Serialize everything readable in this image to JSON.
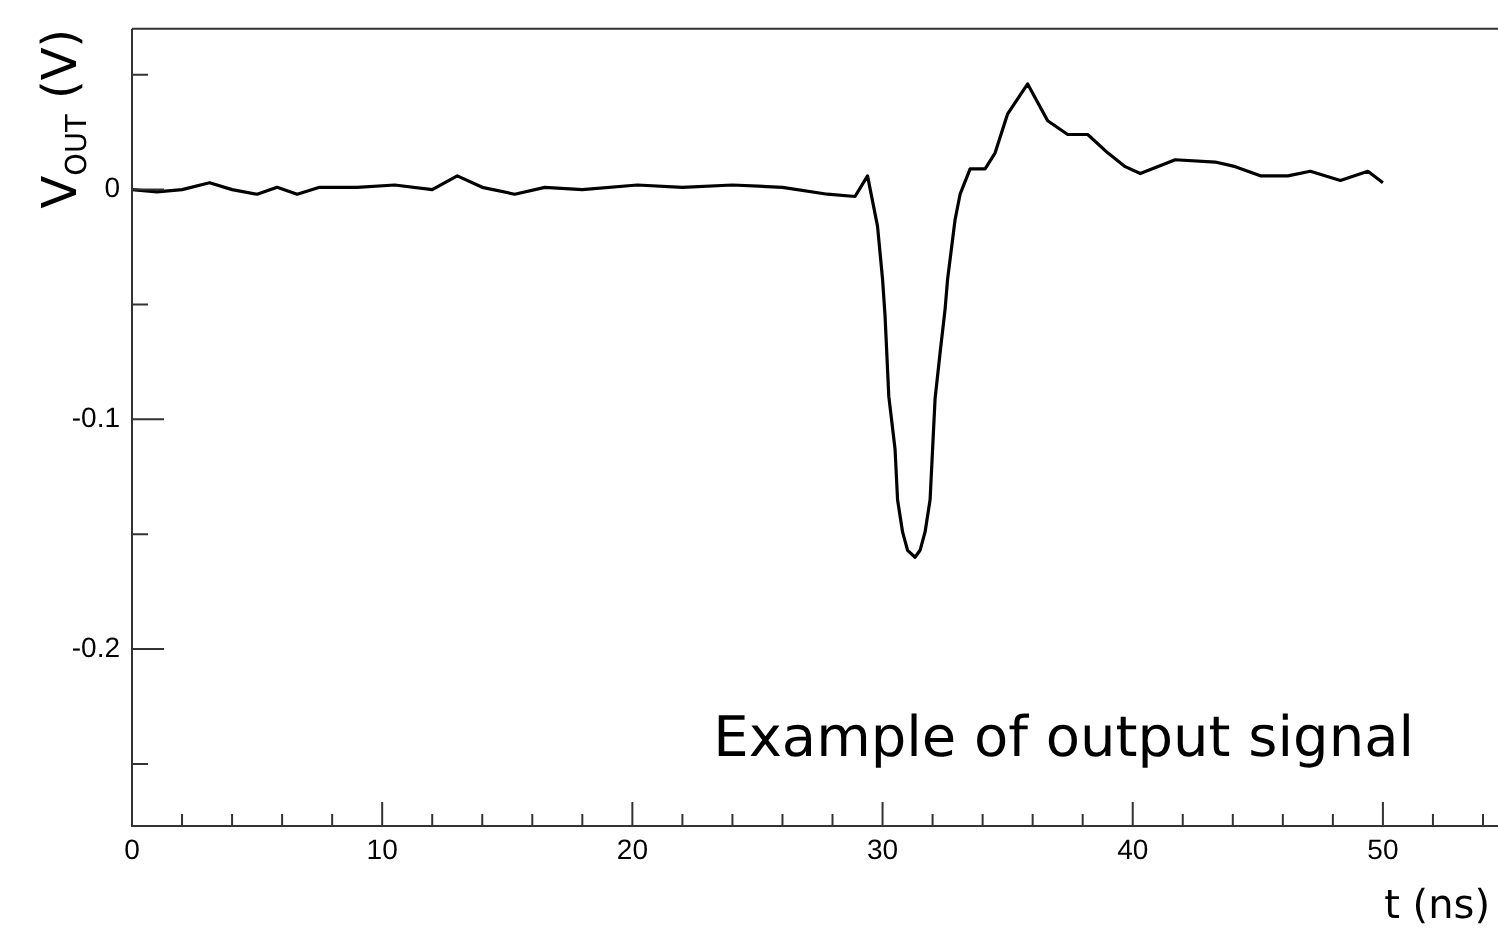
{
  "chart_data": {
    "type": "line",
    "xlabel": "t (ns)",
    "ylabel": "V$_{OUT}$ (V)",
    "annotations": [
      "Example of output signal"
    ],
    "x": [
      0,
      1,
      2,
      3.1,
      4,
      5,
      5.8,
      6.6,
      7.5,
      9,
      10.5,
      12,
      13,
      14,
      15.3,
      16.5,
      18,
      20.2,
      22,
      24,
      26,
      27.8,
      28.9,
      29.4,
      29.8,
      30.0,
      30.1,
      30.25,
      30.5,
      30.6,
      30.8,
      31.0,
      31.3,
      31.5,
      31.7,
      31.9,
      32.0,
      32.1,
      32.3,
      32.5,
      32.6,
      32.9,
      33.1,
      33.5,
      34.1,
      34.5,
      35.0,
      35.8,
      36.6,
      37.4,
      38.2,
      39.0,
      39.7,
      40.3,
      41.7,
      43.3,
      44.1,
      45.1,
      46.2,
      47.1,
      48.3,
      49.4,
      50
    ],
    "values": [
      0,
      -0.001,
      0,
      0.003,
      0,
      -0.002,
      0.001,
      -0.002,
      0.001,
      0.001,
      0.002,
      0,
      0.006,
      0.001,
      -0.002,
      0.001,
      0,
      0.002,
      0.001,
      0.002,
      0.001,
      -0.002,
      -0.003,
      0.006,
      -0.016,
      -0.039,
      -0.055,
      -0.09,
      -0.113,
      -0.135,
      -0.149,
      -0.157,
      -0.16,
      -0.157,
      -0.149,
      -0.135,
      -0.113,
      -0.091,
      -0.071,
      -0.052,
      -0.039,
      -0.013,
      -0.002,
      0.009,
      0.009,
      0.016,
      0.033,
      0.046,
      0.03,
      0.024,
      0.024,
      0.016,
      0.01,
      0.007,
      0.013,
      0.012,
      0.01,
      0.006,
      0.006,
      0.008,
      0.004,
      0.008,
      0.003
    ],
    "color": "#000000",
    "marker": "none",
    "xlim": [
      0,
      54.6
    ],
    "ylim": [
      -0.277,
      0.07
    ],
    "xticks": [
      0,
      {
        "value": 2,
        "label": null
      },
      {
        "value": 4,
        "label": null
      },
      {
        "value": 6,
        "label": null
      },
      {
        "value": 8,
        "label": null
      },
      10,
      {
        "value": 12,
        "label": null
      },
      {
        "value": 14,
        "label": null
      },
      {
        "value": 16,
        "label": null
      },
      {
        "value": 18,
        "label": null
      },
      20,
      {
        "value": 22,
        "label": null
      },
      {
        "value": 24,
        "label": null
      },
      {
        "value": 26,
        "label": null
      },
      {
        "value": 28,
        "label": null
      },
      30,
      {
        "value": 32,
        "label": null
      },
      {
        "value": 34,
        "label": null
      },
      {
        "value": 36,
        "label": null
      },
      {
        "value": 38,
        "label": null
      },
      40,
      {
        "value": 42,
        "label": null
      },
      {
        "value": 44,
        "label": null
      },
      {
        "value": 46,
        "label": null
      },
      {
        "value": 48,
        "label": null
      },
      50,
      {
        "value": 52,
        "label": null
      },
      {
        "value": 54,
        "label": null
      }
    ],
    "yticks": [
      {
        "value": 0.05,
        "label": null
      },
      0,
      {
        "value": -0.05,
        "label": null
      },
      -0.1,
      {
        "value": -0.15,
        "label": null
      },
      -0.2,
      {
        "value": -0.25,
        "label": null
      }
    ]
  }
}
